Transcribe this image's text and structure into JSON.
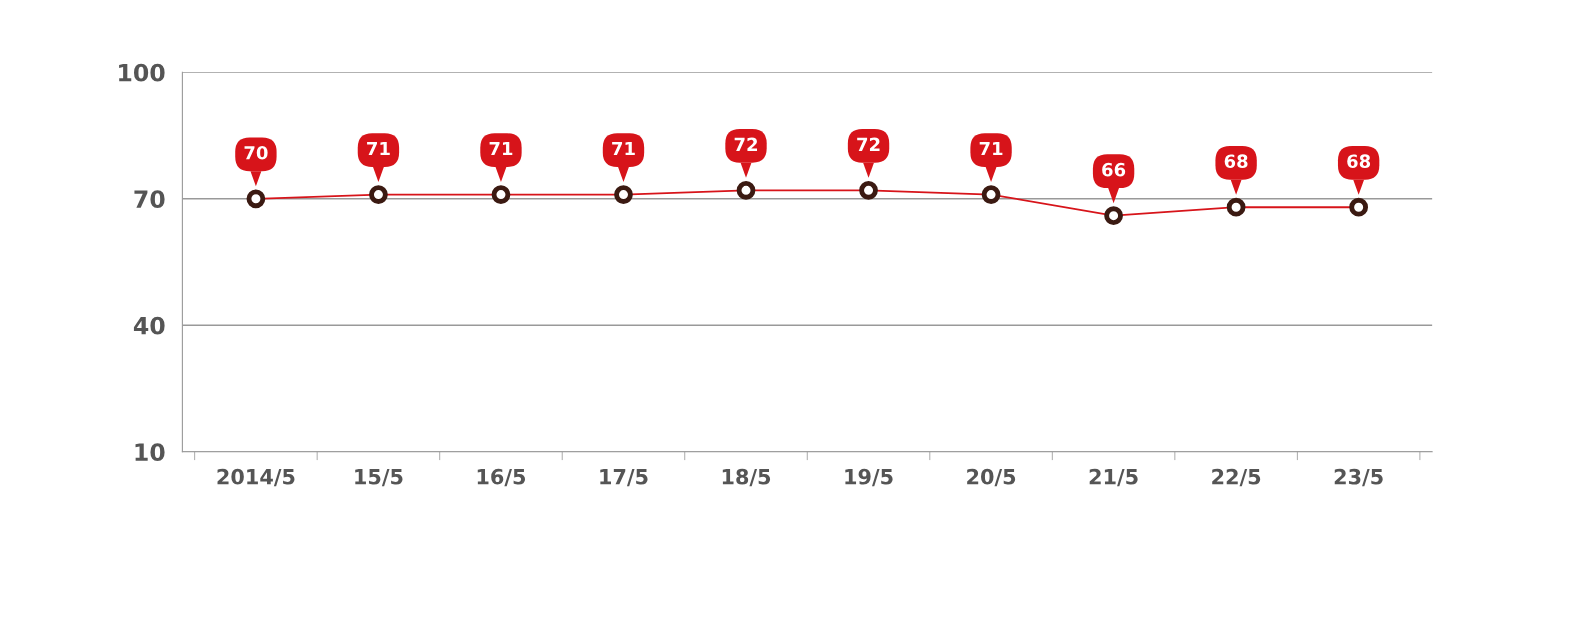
{
  "chart_data": {
    "type": "line",
    "categories": [
      "2014/5",
      "15/5",
      "16/5",
      "17/5",
      "18/5",
      "19/5",
      "20/5",
      "21/5",
      "22/5",
      "23/5"
    ],
    "series": [
      {
        "color": "#d7141a",
        "values": [
          70,
          71,
          71,
          71,
          72,
          72,
          71,
          66,
          68,
          68
        ]
      }
    ],
    "ylim": [
      10,
      100
    ],
    "yticks": [
      10,
      40,
      70,
      100
    ],
    "grid": "y",
    "marker": "circle",
    "line_style": "solid",
    "data_labels": true,
    "legend": false
  }
}
